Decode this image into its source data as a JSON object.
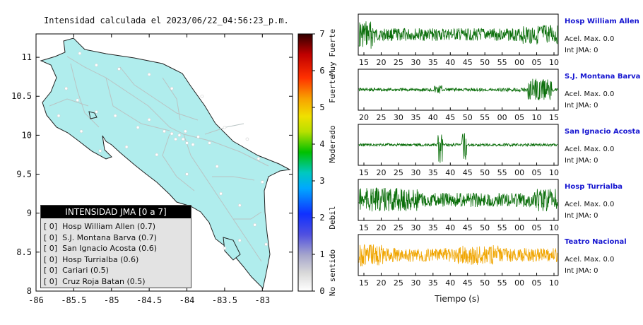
{
  "title": "Intensidad calculada el 2023/06/22_04:56:23_p.m.",
  "chart_data": [
    {
      "type": "map",
      "xlim": [
        -86,
        -82.6
      ],
      "ylim": [
        8,
        11.3
      ],
      "x_ticks": [
        "-86",
        "-85.5",
        "-85",
        "-84.5",
        "-84",
        "-83.5",
        "-83"
      ],
      "y_ticks": [
        "8",
        "8.5",
        "9",
        "9.5",
        "10",
        "10.5",
        "11"
      ],
      "land_color": "#b0eded",
      "stations": [
        {
          "lon": -85.42,
          "lat": 11.05
        },
        {
          "lon": -85.2,
          "lat": 10.9
        },
        {
          "lon": -84.9,
          "lat": 10.85
        },
        {
          "lon": -84.5,
          "lat": 10.78
        },
        {
          "lon": -84.2,
          "lat": 10.6
        },
        {
          "lon": -83.8,
          "lat": 10.5
        },
        {
          "lon": -85.6,
          "lat": 10.6
        },
        {
          "lon": -85.45,
          "lat": 10.45
        },
        {
          "lon": -85.2,
          "lat": 10.3
        },
        {
          "lon": -84.95,
          "lat": 10.25
        },
        {
          "lon": -84.65,
          "lat": 10.1
        },
        {
          "lon": -84.5,
          "lat": 10.2
        },
        {
          "lon": -84.3,
          "lat": 10.05
        },
        {
          "lon": -84.1,
          "lat": 10.0
        },
        {
          "lon": -84.05,
          "lat": 9.95
        },
        {
          "lon": -84.15,
          "lat": 9.95
        },
        {
          "lon": -84.0,
          "lat": 9.9
        },
        {
          "lon": -83.92,
          "lat": 9.88
        },
        {
          "lon": -84.2,
          "lat": 10.02
        },
        {
          "lon": -83.85,
          "lat": 9.98
        },
        {
          "lon": -84.02,
          "lat": 10.05
        },
        {
          "lon": -83.7,
          "lat": 9.9
        },
        {
          "lon": -83.5,
          "lat": 10.1
        },
        {
          "lon": -83.2,
          "lat": 9.95
        },
        {
          "lon": -83.05,
          "lat": 9.7
        },
        {
          "lon": -83.6,
          "lat": 9.6
        },
        {
          "lon": -84.0,
          "lat": 9.5
        },
        {
          "lon": -84.4,
          "lat": 9.75
        },
        {
          "lon": -84.8,
          "lat": 9.85
        },
        {
          "lon": -85.15,
          "lat": 9.8
        },
        {
          "lon": -83.55,
          "lat": 9.25
        },
        {
          "lon": -83.3,
          "lat": 9.1
        },
        {
          "lon": -83.1,
          "lat": 8.85
        },
        {
          "lon": -83.3,
          "lat": 8.65
        },
        {
          "lon": -82.95,
          "lat": 8.6
        },
        {
          "lon": -83.5,
          "lat": 8.55
        },
        {
          "lon": -85.7,
          "lat": 10.25
        },
        {
          "lon": -85.4,
          "lat": 10.05
        },
        {
          "lon": -83.0,
          "lat": 9.4
        }
      ]
    },
    {
      "type": "colorbar",
      "ylim": [
        0,
        7
      ],
      "ticks": [
        "0",
        "1",
        "2",
        "3",
        "4",
        "5",
        "6",
        "7"
      ],
      "category_labels": [
        "No sentido",
        "Debil",
        "Moderado",
        "Fuerte",
        "Muy Fuerte"
      ],
      "category_positions": [
        0.5,
        2,
        4,
        5.5,
        6.5
      ]
    },
    {
      "type": "line",
      "xlabel": "Tiempo (s)",
      "panels": [
        {
          "name": "Hosp William Allen",
          "acel": "Acel. Max. 0.0",
          "int": "Int JMA: 0",
          "ticks": [
            "15",
            "20",
            "25",
            "30",
            "35",
            "40",
            "45",
            "50",
            "55",
            "00",
            "05",
            "10"
          ],
          "first_tick_second": 15,
          "color": "#0a6e0a"
        },
        {
          "name": "S.J. Montana Barva",
          "acel": "Acel. Max. 0.0",
          "int": "Int JMA: 0",
          "ticks": [
            "20",
            "25",
            "30",
            "35",
            "40",
            "45",
            "50",
            "55",
            "00",
            "05",
            "10",
            "15"
          ],
          "first_tick_second": 20,
          "color": "#0a6e0a"
        },
        {
          "name": "San Ignacio Acosta",
          "acel": "Acel. Max. 0.0",
          "int": "Int JMA: 0",
          "ticks": [
            "15",
            "20",
            "25",
            "30",
            "35",
            "40",
            "45",
            "50",
            "55",
            "00",
            "05",
            "10"
          ],
          "first_tick_second": 15,
          "color": "#0a6e0a"
        },
        {
          "name": "Hosp Turrialba",
          "acel": "Acel. Max. 0.0",
          "int": "Int JMA: 0",
          "ticks": [
            "15",
            "20",
            "25",
            "30",
            "35",
            "40",
            "45",
            "50",
            "55",
            "00",
            "05",
            "10"
          ],
          "first_tick_second": 15,
          "color": "#0a6e0a"
        },
        {
          "name": "Teatro Nacional",
          "acel": "Acel. Max. 0.0",
          "int": "Int JMA: 0",
          "ticks": [
            "15",
            "20",
            "25",
            "30",
            "35",
            "40",
            "45",
            "50",
            "55",
            "00",
            "05",
            "10"
          ],
          "first_tick_second": 15,
          "color": "#f0a500"
        }
      ]
    }
  ],
  "legend": {
    "title": "INTENSIDAD JMA [0 a 7]",
    "items": [
      "[ 0]  Hosp William Allen (0.7)",
      "[ 0]  S.J. Montana Barva (0.7)",
      "[ 0]  San Ignacio Acosta (0.6)",
      "[ 0]  Hosp Turrialba (0.6)",
      "[ 0]  Cariari (0.5)",
      "[ 0]  Cruz Roja Batan (0.5)"
    ]
  }
}
